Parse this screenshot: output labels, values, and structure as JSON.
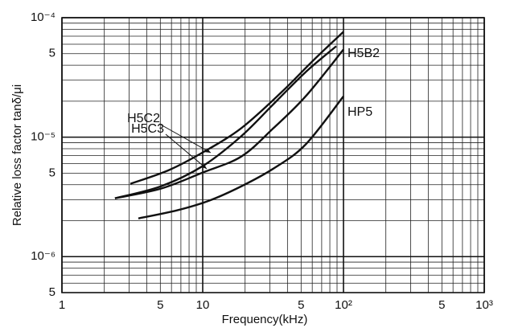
{
  "chart_data": {
    "type": "line",
    "log_x": true,
    "log_y": true,
    "grid": true,
    "x_label": "Frequency(kHz)",
    "y_label": "Relative loss factor tanδ/μi",
    "xlim": [
      1,
      1000
    ],
    "xticks": [
      1,
      5,
      10,
      {
        "value": 50,
        "label": "5"
      },
      {
        "value": 100,
        "label": "10²"
      },
      {
        "value": 500,
        "label": "5"
      },
      {
        "value": 1000,
        "label": "10³"
      }
    ],
    "x_minor_ticks": [
      2,
      3,
      4,
      6,
      7,
      8,
      9,
      20,
      30,
      40,
      60,
      70,
      80,
      90,
      200,
      300,
      400,
      600,
      700,
      800,
      900
    ],
    "ylim": [
      5e-07,
      0.0001
    ],
    "yticks": [
      {
        "value": 5e-07,
        "label": "5"
      },
      {
        "value": 1e-06,
        "label": "10⁻⁶"
      },
      {
        "value": 5e-06,
        "label": "5"
      },
      {
        "value": 1e-05,
        "label": "10⁻⁵"
      },
      {
        "value": 5e-05,
        "label": "5"
      },
      {
        "value": 0.0001,
        "label": "10⁻⁴"
      }
    ],
    "y_minor_ticks": [
      6e-07,
      7e-07,
      8e-07,
      9e-07,
      2e-06,
      3e-06,
      4e-06,
      6e-06,
      7e-06,
      8e-06,
      9e-06,
      2e-05,
      3e-05,
      4e-05,
      6e-05,
      7e-05,
      8e-05,
      9e-05
    ],
    "series": [
      {
        "name": "H5C2",
        "color": "#111111",
        "x": [
          3.06,
          5.75,
          10,
          18.8,
          36.3,
          61.5,
          100
        ],
        "values": [
          4.07e-06,
          5.3e-06,
          7.45e-06,
          1.19e-05,
          2.38e-05,
          4.43e-05,
          7.62e-05
        ]
      },
      {
        "name": "H5C3",
        "color": "#111111",
        "x": [
          2.38,
          5.05,
          10,
          18.8,
          31.8,
          53.9,
          88.8
        ],
        "values": [
          3.08e-06,
          3.88e-06,
          5.73e-06,
          1.02e-05,
          1.89e-05,
          3.51e-05,
          5.77e-05
        ]
      },
      {
        "name": "H5B2",
        "color": "#111111",
        "x": [
          2.38,
          5.05,
          10,
          18.8,
          31.8,
          53.9,
          100
        ],
        "values": [
          3.08e-06,
          3.71e-06,
          5.06e-06,
          6.89e-06,
          1.19e-05,
          2.2e-05,
          5.42e-05
        ]
      },
      {
        "name": "HP5",
        "color": "#111111",
        "x": [
          3.49,
          6.56,
          11.1,
          18.8,
          31.8,
          53.9,
          100
        ],
        "values": [
          2.09e-06,
          2.44e-06,
          2.94e-06,
          3.88e-06,
          5.46e-06,
          8.7e-06,
          2.2e-05
        ]
      }
    ]
  }
}
